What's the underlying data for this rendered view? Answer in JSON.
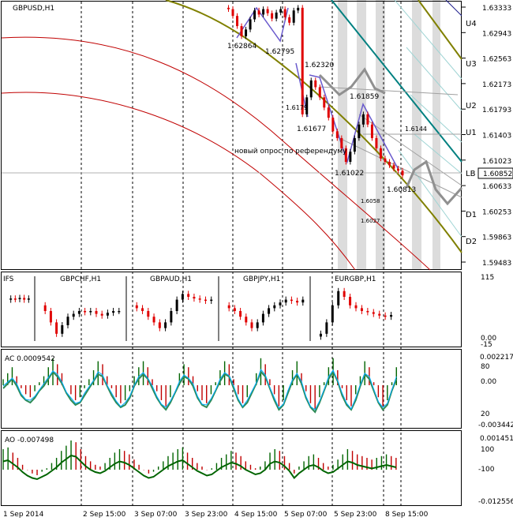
{
  "chart_data": {
    "type": "candlestick-multipanel",
    "main": {
      "title": "GBPUSD,H1",
      "price_ticks": [
        "1.63333",
        "1.62943",
        "1.62563",
        "1.62173",
        "1.61793",
        "1.61403",
        "1.61023",
        "1.60633",
        "1.60253",
        "1.59863",
        "1.59483"
      ],
      "current_price": "1.60852",
      "level_labels": [
        "U4",
        "U3",
        "U2",
        "U1",
        "LB",
        "D1",
        "D2"
      ],
      "point_labels": [
        "1.62864",
        "1.62795",
        "1.62320",
        "1.6179",
        "1.61677",
        "1.61859",
        "1.6144",
        "1.61022",
        "1.60813",
        "1.6058",
        "1.6027"
      ],
      "annotation": "новый опрос по референдуму",
      "close_path": [
        1.6332,
        1.633,
        1.632,
        1.6305,
        1.629,
        1.63,
        1.6315,
        1.6328,
        1.6322,
        1.633,
        1.6324,
        1.6316,
        1.6325,
        1.633,
        1.6318,
        1.631,
        1.6328,
        1.6332,
        1.6175,
        1.62,
        1.6225,
        1.6215,
        1.62,
        1.6185,
        1.617,
        1.615,
        1.614,
        1.6125,
        1.6105,
        1.612,
        1.614,
        1.616,
        1.6175,
        1.616,
        1.614,
        1.6125,
        1.611,
        1.6105,
        1.61,
        1.6095,
        1.6092,
        1.6085
      ]
    },
    "correlation": {
      "label": "IFS",
      "pairs": [
        "GBPCHF,H1",
        "GBPAUD,H1",
        "GBPJPY,H1",
        "EURGBP,H1"
      ],
      "scale": [
        "115",
        "0.00",
        "-15"
      ]
    },
    "ac": {
      "label": "AC 0.0009542",
      "scale": [
        "0.0022176",
        "80",
        "0.00",
        "20",
        "-0.003442"
      ],
      "values": [
        0.2,
        0.4,
        0.6,
        0.3,
        -0.1,
        -0.3,
        -0.4,
        -0.2,
        0.1,
        0.3,
        0.6,
        0.9,
        0.7,
        0.4,
        0.0,
        -0.3,
        -0.5,
        -0.4,
        -0.1,
        0.2,
        0.5,
        0.8,
        0.7,
        0.3,
        -0.1,
        -0.4,
        -0.6,
        -0.5,
        -0.2,
        0.3,
        0.6,
        0.8,
        0.6,
        0.2,
        -0.2,
        -0.5,
        -0.7,
        -0.4,
        0.0,
        0.4,
        0.7,
        0.6,
        0.3,
        -0.2,
        -0.5,
        -0.6,
        -0.3,
        0.1,
        0.5,
        0.8,
        0.7,
        0.2,
        -0.3,
        -0.6,
        -0.4,
        0.0,
        0.4,
        0.9,
        0.7,
        0.2,
        -0.3,
        -0.7,
        -0.5,
        0.0,
        0.5,
        0.8,
        0.4,
        -0.2,
        -0.6,
        -0.8,
        -0.4,
        0.1,
        0.6,
        0.9,
        0.5,
        -0.1,
        -0.5,
        -0.7,
        -0.3,
        0.3,
        0.8,
        0.6,
        0.1,
        -0.4,
        -0.7,
        -0.5,
        0.1,
        0.6
      ]
    },
    "ao": {
      "label": "AO -0.007498",
      "scale": [
        "0.001451",
        "100",
        "-100",
        "-0.012556"
      ],
      "values": [
        0.5,
        0.6,
        0.3,
        0.0,
        -0.4,
        -0.7,
        -0.9,
        -1.0,
        -0.8,
        -0.6,
        -0.3,
        0.0,
        0.4,
        0.7,
        1.0,
        0.9,
        0.5,
        0.1,
        -0.2,
        -0.4,
        -0.5,
        -0.3,
        0.0,
        0.3,
        0.5,
        0.4,
        0.2,
        -0.1,
        -0.4,
        -0.7,
        -0.9,
        -0.8,
        -0.5,
        -0.2,
        0.1,
        0.3,
        0.5,
        0.6,
        0.3,
        0.0,
        -0.3,
        -0.5,
        -0.7,
        -0.6,
        -0.3,
        0.0,
        0.2,
        0.4,
        0.3,
        0.1,
        -0.2,
        -0.4,
        -0.6,
        -0.5,
        -0.2,
        0.3,
        0.5,
        0.4,
        0.1,
        -0.3,
        -0.9,
        -0.5,
        -0.2,
        0.1,
        0.2,
        0.0,
        -0.3,
        -0.5,
        -0.4,
        -0.1,
        0.2,
        0.5,
        0.4,
        0.2,
        0.1,
        0.0,
        -0.1,
        0.0,
        0.1,
        0.2,
        0.1,
        0.0
      ]
    },
    "x_tick_labels": [
      "1 Sep 2014",
      "2 Sep 15:00",
      "3 Sep 07:00",
      "3 Sep 23:00",
      "4 Sep 15:00",
      "5 Sep 07:00",
      "5 Sep 23:00",
      "8 Sep 15:00"
    ]
  },
  "colors": {
    "bull": "#000000",
    "bear": "#e00000",
    "grid": "#000000",
    "channel_olive": "#808000",
    "channel_teal": "#008080",
    "ma_red": "#c00000",
    "zigzag": "#6a5acd",
    "ac_up": "#006400",
    "ac_down": "#c00000",
    "ao_line": "#006400",
    "lb_box": "#ffffff"
  }
}
